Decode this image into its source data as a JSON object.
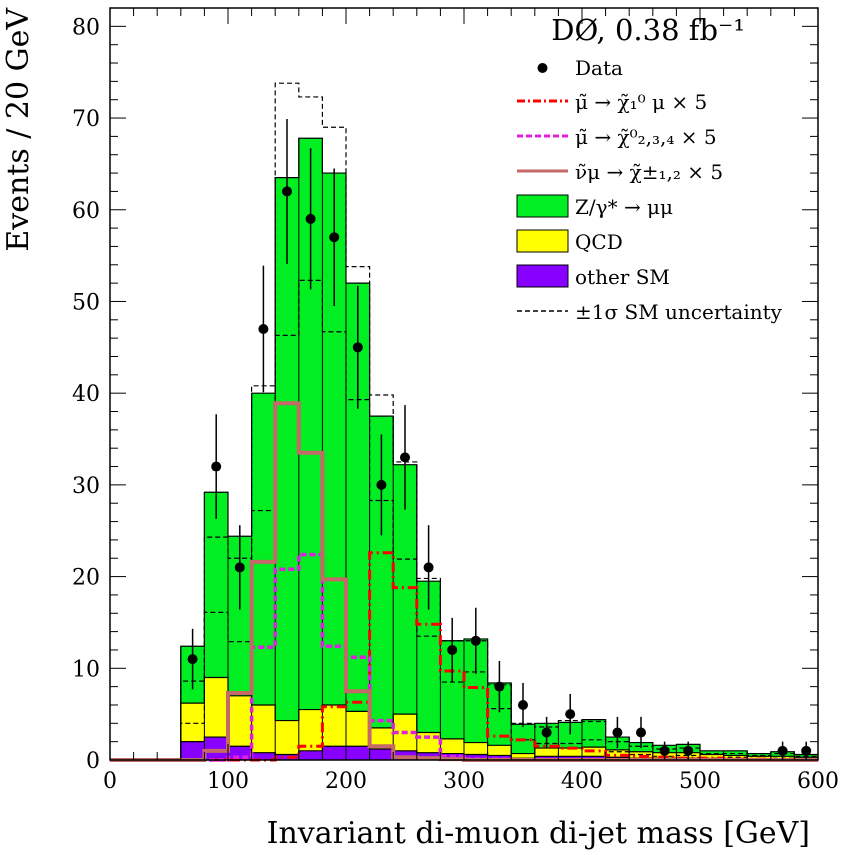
{
  "chart_data": {
    "type": "bar",
    "title": "DØ, 0.38 fb⁻¹",
    "xlabel": "Invariant di-muon di-jet mass [GeV]",
    "ylabel": "Events / 20 GeV",
    "xlim": [
      0,
      600
    ],
    "ylim": [
      0,
      82
    ],
    "bin_width": 20,
    "bin_edges": [
      0,
      20,
      40,
      60,
      80,
      100,
      120,
      140,
      160,
      180,
      200,
      220,
      240,
      260,
      280,
      300,
      320,
      340,
      360,
      380,
      400,
      420,
      440,
      460,
      480,
      500,
      520,
      540,
      560,
      580,
      600
    ],
    "x_ticks": [
      0,
      100,
      200,
      300,
      400,
      500,
      600
    ],
    "y_ticks": [
      0,
      10,
      20,
      30,
      40,
      50,
      60,
      70,
      80
    ],
    "grid": false,
    "legend_position": "top-right",
    "legend": [
      {
        "label": "Data",
        "marker": "dot"
      },
      {
        "label": "μ̃ → χ̃₁⁰ μ × 5",
        "marker": "dash-dot",
        "color": "#ff0000"
      },
      {
        "label": "μ̃ → χ̃⁰₂,₃,₄ × 5",
        "marker": "dash",
        "color": "#e020e0"
      },
      {
        "label": "ν̃μ → χ̃±₁,₂ × 5",
        "marker": "line",
        "color": "#c46868"
      },
      {
        "label": "Z/γ* → μμ",
        "marker": "box",
        "color": "#00ee22"
      },
      {
        "label": "QCD",
        "marker": "box",
        "color": "#ffff00"
      },
      {
        "label": "other SM",
        "marker": "box",
        "color": "#8800ff"
      },
      {
        "label": "±1σ SM uncertainty",
        "marker": "dash-black",
        "color": "#000000"
      }
    ],
    "stack": [
      {
        "name": "other SM",
        "color": "#8800ff",
        "values": [
          0,
          0,
          0,
          2.0,
          2.5,
          1.5,
          0.8,
          0.6,
          1.0,
          1.5,
          1.5,
          1.2,
          1.0,
          0.8,
          0.7,
          0.6,
          0.5,
          0.2,
          0.4,
          0.4,
          0.4,
          0.3,
          0.2,
          0.2,
          0.2,
          0.1,
          0.1,
          0.1,
          0.1,
          0.1
        ]
      },
      {
        "name": "QCD",
        "color": "#ffff00",
        "values": [
          0,
          0,
          0,
          4.2,
          6.5,
          5.5,
          5.2,
          3.7,
          4.5,
          4.5,
          3.8,
          2.3,
          4.0,
          2.2,
          1.6,
          1.3,
          1.1,
          0.5,
          0.9,
          0.9,
          1.0,
          0.8,
          0.7,
          0.6,
          0.6,
          0.5,
          0.4,
          0.3,
          0.3,
          0.2
        ]
      },
      {
        "name": "Z/γ* → μμ",
        "color": "#00ee22",
        "values": [
          0,
          0,
          0,
          6.2,
          20.2,
          17.4,
          34.0,
          59.2,
          62.3,
          58.0,
          46.7,
          34.0,
          27.2,
          16.5,
          10.7,
          11.3,
          6.8,
          3.2,
          2.7,
          2.8,
          3.0,
          1.4,
          1.0,
          0.8,
          0.9,
          0.4,
          0.5,
          0.3,
          0.5,
          0.3
        ]
      }
    ],
    "sm_uncertainty": {
      "upper": [
        0,
        0,
        0,
        8.6,
        24.3,
        22.0,
        40.8,
        73.8,
        72.3,
        69.0,
        53.8,
        39.8,
        32.5,
        19.8,
        13.0,
        13.0,
        8.2,
        4.0,
        3.6,
        4.3,
        4.2,
        2.0,
        1.5,
        1.2,
        1.3,
        0.7,
        0.7,
        0.5,
        0.7,
        0.4
      ],
      "lower": [
        0,
        0,
        0,
        4.0,
        16.1,
        12.9,
        27.2,
        46.3,
        52.3,
        46.7,
        39.3,
        28.3,
        21.9,
        13.5,
        8.5,
        9.6,
        5.6,
        2.2,
        1.8,
        1.8,
        2.2,
        0.9,
        0.6,
        0.4,
        0.5,
        0.2,
        0.3,
        0.1,
        0.2,
        0.1
      ]
    },
    "series": [
      {
        "name": "μ̃ → χ̃₁⁰ μ × 5",
        "style": "dash-dot",
        "color": "#ff0000",
        "values": [
          0,
          0,
          0,
          0,
          0,
          0,
          0,
          0.3,
          1.5,
          5.8,
          6.3,
          22.6,
          18.8,
          14.8,
          9.7,
          7.9,
          2.6,
          2.2,
          1.5,
          1.3,
          1.0,
          0.5,
          0.4,
          0.3,
          0.2,
          0.2,
          0.1,
          0.1,
          0,
          0
        ]
      },
      {
        "name": "μ̃ → χ̃⁰₂,₃,₄ × 5",
        "style": "dash",
        "color": "#e020e0",
        "values": [
          0,
          0,
          0,
          0,
          0,
          0.3,
          12.3,
          20.8,
          22.4,
          12.4,
          11.2,
          4.3,
          3.0,
          2.5,
          0.4,
          0.1,
          0.1,
          0,
          0,
          0,
          0,
          0,
          0,
          0,
          0,
          0,
          0,
          0,
          0,
          0
        ]
      },
      {
        "name": "ν̃μ → χ̃±₁,₂ × 5",
        "style": "solid",
        "color": "#c46868",
        "values": [
          0,
          0,
          0,
          0,
          1.0,
          7.3,
          21.6,
          38.9,
          33.5,
          19.7,
          7.5,
          1.5,
          0.3,
          0.2,
          0.1,
          0,
          0,
          0,
          0,
          0,
          0,
          0,
          0,
          0,
          0,
          0,
          0,
          0,
          0,
          0
        ]
      }
    ],
    "data_points": [
      {
        "x": 70,
        "y": 11,
        "err": 3.3
      },
      {
        "x": 90,
        "y": 32,
        "err": 5.7
      },
      {
        "x": 110,
        "y": 21,
        "err": 4.6
      },
      {
        "x": 130,
        "y": 47,
        "err": 6.9
      },
      {
        "x": 150,
        "y": 62,
        "err": 7.9
      },
      {
        "x": 170,
        "y": 59,
        "err": 7.7
      },
      {
        "x": 190,
        "y": 57,
        "err": 7.5
      },
      {
        "x": 210,
        "y": 45,
        "err": 6.7
      },
      {
        "x": 230,
        "y": 30,
        "err": 5.5
      },
      {
        "x": 250,
        "y": 33,
        "err": 5.7
      },
      {
        "x": 270,
        "y": 21,
        "err": 4.6
      },
      {
        "x": 290,
        "y": 12,
        "err": 3.5
      },
      {
        "x": 310,
        "y": 13,
        "err": 3.6
      },
      {
        "x": 330,
        "y": 8,
        "err": 2.8
      },
      {
        "x": 350,
        "y": 6,
        "err": 2.4
      },
      {
        "x": 370,
        "y": 3,
        "err": 1.7
      },
      {
        "x": 390,
        "y": 5,
        "err": 2.2
      },
      {
        "x": 430,
        "y": 3,
        "err": 1.7
      },
      {
        "x": 450,
        "y": 3,
        "err": 1.7
      },
      {
        "x": 470,
        "y": 1,
        "err": 1.0
      },
      {
        "x": 490,
        "y": 1,
        "err": 1.0
      },
      {
        "x": 570,
        "y": 1,
        "err": 1.0
      },
      {
        "x": 590,
        "y": 1,
        "err": 1.0
      }
    ]
  }
}
